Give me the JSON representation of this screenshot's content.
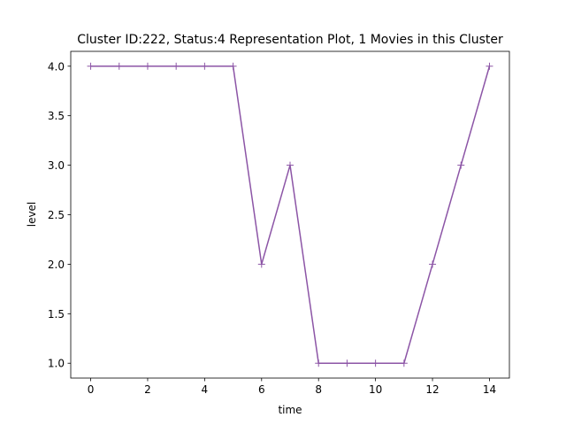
{
  "chart_data": {
    "type": "line",
    "title": "Cluster ID:222, Status:4 Representation Plot, 1 Movies in this Cluster",
    "xlabel": "time",
    "ylabel": "level",
    "xlim": [
      -0.7,
      14.7
    ],
    "ylim": [
      0.85,
      4.15
    ],
    "xticks": [
      0,
      2,
      4,
      6,
      8,
      10,
      12,
      14
    ],
    "yticks": [
      1.0,
      1.5,
      2.0,
      2.5,
      3.0,
      3.5,
      4.0
    ],
    "ytick_labels": [
      "1.0",
      "1.5",
      "2.0",
      "2.5",
      "3.0",
      "3.5",
      "4.0"
    ],
    "grid": false,
    "marker": "plus",
    "color": "#8c55a6",
    "series": [
      {
        "x": [
          0,
          1,
          2,
          3,
          4,
          5,
          6,
          7,
          8,
          9,
          10,
          11,
          12,
          13,
          14
        ],
        "values": [
          4,
          4,
          4,
          4,
          4,
          4,
          2,
          3,
          1,
          1,
          1,
          1,
          2,
          3,
          4
        ]
      }
    ]
  }
}
